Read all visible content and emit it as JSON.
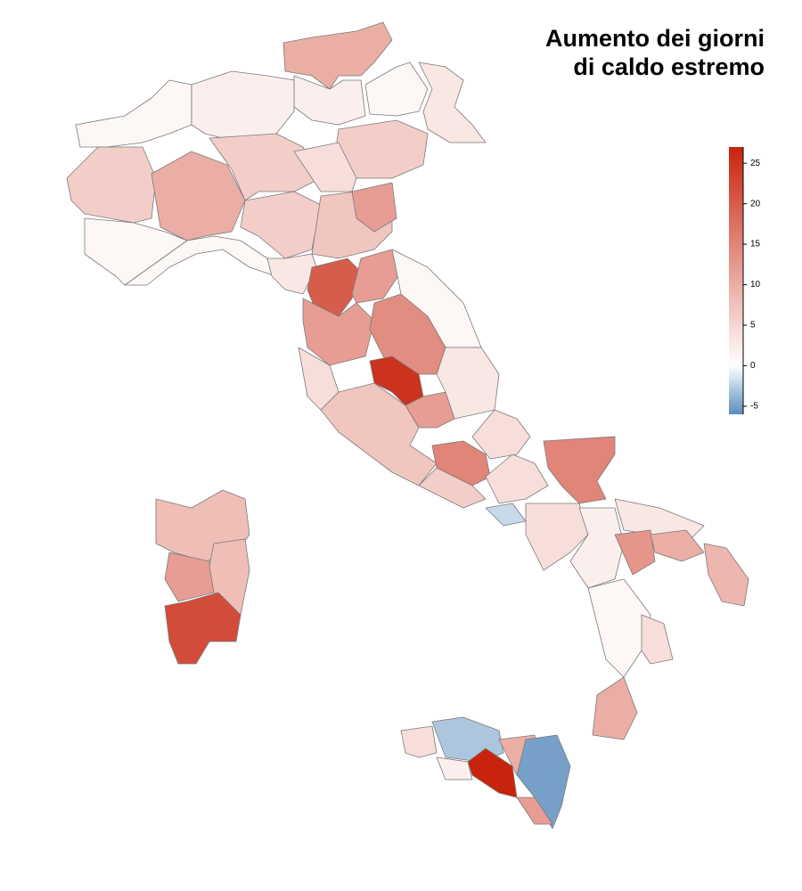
{
  "chart_data": {
    "type": "choropleth",
    "title_lines": [
      "Aumento dei giorni",
      "di caldo estremo"
    ],
    "values": [
      10,
      2,
      1,
      3,
      6,
      1,
      6,
      1,
      10,
      2,
      6,
      4,
      6,
      7,
      12,
      1,
      3,
      20,
      12,
      12,
      4,
      14,
      25,
      7,
      12,
      1,
      3,
      4,
      15,
      6,
      4,
      -2,
      15,
      4,
      2,
      3,
      13,
      10,
      9,
      1,
      4,
      10,
      8,
      12,
      8,
      22,
      4,
      -3,
      27,
      10,
      -5,
      12,
      2
    ],
    "clim": [
      -6,
      27
    ],
    "colorbar_ticks": [
      -5,
      0,
      5,
      10,
      15,
      20,
      25
    ],
    "colors": {
      "low": "#5a8dbd",
      "mid": "#ffffff",
      "high": "#c8230c"
    }
  }
}
